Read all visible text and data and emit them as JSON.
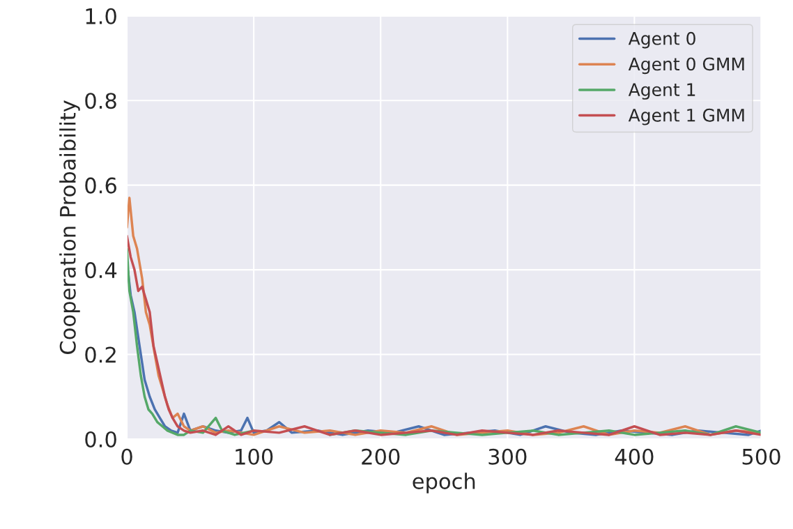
{
  "chart_data": {
    "type": "line",
    "xlabel": "epoch",
    "ylabel": "Cooperation Probaibility",
    "xlim": [
      0,
      500
    ],
    "ylim": [
      0,
      1.0
    ],
    "xticks": [
      0,
      100,
      200,
      300,
      400,
      500
    ],
    "yticks": [
      {
        "value": 0,
        "label": "0.0"
      },
      0.2,
      0.4,
      0.6,
      0.8,
      {
        "value": 1.0,
        "label": "1.0"
      }
    ],
    "grid": true,
    "legend": "top right",
    "line_style": "solid",
    "marker": "none",
    "series": [
      {
        "name": "Agent 0",
        "color": "#4c72b0",
        "x": [
          0,
          3,
          6,
          10,
          14,
          18,
          22,
          26,
          30,
          35,
          40,
          45,
          50,
          60,
          70,
          80,
          90,
          95,
          100,
          110,
          120,
          130,
          150,
          170,
          190,
          210,
          230,
          250,
          270,
          290,
          310,
          330,
          350,
          370,
          390,
          410,
          430,
          450,
          470,
          490,
          500
        ],
        "values": [
          0.42,
          0.34,
          0.3,
          0.22,
          0.14,
          0.1,
          0.07,
          0.05,
          0.03,
          0.02,
          0.015,
          0.06,
          0.02,
          0.03,
          0.02,
          0.015,
          0.02,
          0.05,
          0.015,
          0.02,
          0.04,
          0.015,
          0.02,
          0.01,
          0.02,
          0.015,
          0.03,
          0.01,
          0.015,
          0.02,
          0.01,
          0.03,
          0.015,
          0.01,
          0.02,
          0.015,
          0.01,
          0.02,
          0.015,
          0.01,
          0.02
        ]
      },
      {
        "name": "Agent 0 GMM",
        "color": "#dd8452",
        "x": [
          0,
          2,
          5,
          8,
          12,
          15,
          18,
          22,
          25,
          28,
          32,
          36,
          40,
          45,
          50,
          60,
          70,
          80,
          100,
          120,
          140,
          160,
          180,
          200,
          220,
          240,
          260,
          280,
          300,
          320,
          340,
          360,
          380,
          400,
          420,
          440,
          460,
          480,
          500
        ],
        "values": [
          0.5,
          0.57,
          0.48,
          0.45,
          0.38,
          0.3,
          0.27,
          0.2,
          0.15,
          0.12,
          0.08,
          0.05,
          0.06,
          0.03,
          0.02,
          0.03,
          0.015,
          0.02,
          0.01,
          0.03,
          0.015,
          0.02,
          0.01,
          0.02,
          0.015,
          0.03,
          0.01,
          0.015,
          0.02,
          0.01,
          0.015,
          0.03,
          0.01,
          0.02,
          0.015,
          0.03,
          0.01,
          0.02,
          0.015
        ]
      },
      {
        "name": "Agent 1",
        "color": "#55a868",
        "x": [
          0,
          2,
          5,
          8,
          11,
          14,
          17,
          20,
          24,
          28,
          32,
          36,
          40,
          45,
          50,
          60,
          70,
          75,
          85,
          100,
          120,
          140,
          160,
          180,
          200,
          220,
          240,
          260,
          280,
          300,
          320,
          340,
          360,
          380,
          400,
          420,
          440,
          460,
          480,
          500
        ],
        "values": [
          0.45,
          0.35,
          0.3,
          0.22,
          0.15,
          0.1,
          0.07,
          0.06,
          0.04,
          0.03,
          0.02,
          0.015,
          0.01,
          0.01,
          0.02,
          0.015,
          0.05,
          0.02,
          0.01,
          0.02,
          null,
          null,
          0.01,
          0.02,
          0.015,
          0.01,
          0.02,
          0.015,
          0.01,
          0.015,
          0.02,
          0.01,
          0.015,
          0.02,
          0.01,
          0.015,
          0.02,
          0.01,
          0.03,
          0.015
        ]
      },
      {
        "name": "Agent 1 GMM",
        "color": "#c44e52",
        "x": [
          0,
          3,
          6,
          9,
          12,
          15,
          18,
          21,
          24,
          27,
          30,
          33,
          36,
          40,
          45,
          50,
          60,
          70,
          80,
          90,
          100,
          120,
          140,
          160,
          180,
          200,
          220,
          240,
          260,
          280,
          300,
          320,
          340,
          360,
          380,
          400,
          420,
          440,
          460,
          480,
          500
        ],
        "values": [
          0.48,
          0.43,
          0.4,
          0.35,
          0.36,
          0.33,
          0.3,
          0.22,
          0.18,
          0.14,
          0.1,
          0.07,
          0.05,
          0.03,
          0.02,
          0.015,
          0.02,
          0.01,
          0.03,
          0.01,
          0.02,
          0.015,
          0.03,
          0.01,
          0.02,
          0.01,
          0.015,
          0.02,
          0.01,
          0.02,
          0.015,
          0.01,
          0.02,
          0.015,
          0.01,
          0.03,
          0.01,
          0.015,
          0.01,
          0.02,
          0.01
        ]
      }
    ]
  }
}
